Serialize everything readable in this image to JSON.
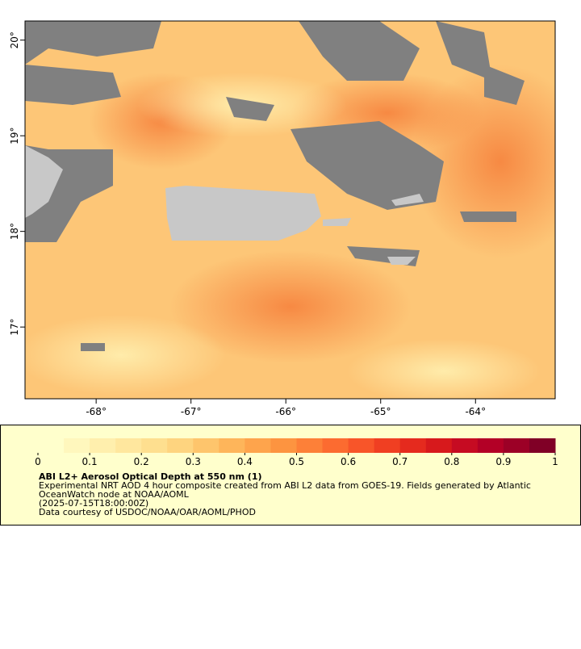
{
  "map": {
    "xlim": [
      -68.75,
      -63.16
    ],
    "ylim": [
      16.25,
      20.2
    ],
    "xticks": [
      {
        "value": -68,
        "label": "-68°"
      },
      {
        "value": -67,
        "label": "-67°"
      },
      {
        "value": -66,
        "label": "-66°"
      },
      {
        "value": -65,
        "label": "-65°"
      },
      {
        "value": -64,
        "label": "-64°"
      }
    ],
    "yticks": [
      {
        "value": 17,
        "label": "17°"
      },
      {
        "value": 18,
        "label": "18°"
      },
      {
        "value": 19,
        "label": "19°"
      },
      {
        "value": 20,
        "label": "20°"
      }
    ]
  },
  "colorbar": {
    "lim": [
      0,
      1
    ],
    "ticks": [
      0,
      0.1,
      0.2,
      0.3,
      0.4,
      0.5,
      0.6,
      0.7,
      0.8,
      0.9,
      1
    ],
    "colors": [
      "#ffffcc",
      "#fff7bd",
      "#ffefad",
      "#ffe79e",
      "#fedf8f",
      "#fed47f",
      "#fec56c",
      "#feb55a",
      "#fea44c",
      "#fd9440",
      "#fd8038",
      "#fc6b30",
      "#f85529",
      "#f03f22",
      "#e52a1e",
      "#d7191c",
      "#c60b22",
      "#b30026",
      "#9c0026",
      "#800026"
    ]
  },
  "legend": {
    "title": "ABI L2+ Aerosol Optical Depth at 550 nm (1)",
    "lines": [
      "Experimental NRT AOD 4 hour composite created from ABI L2 data from GOES-19. Fields generated by Atlantic",
      "OceanWatch node at NOAA/AOML",
      "(2025-07-15T18:00:00Z)",
      "Data courtesy of USDOC/NOAA/OAR/AOML/PHOD"
    ]
  }
}
